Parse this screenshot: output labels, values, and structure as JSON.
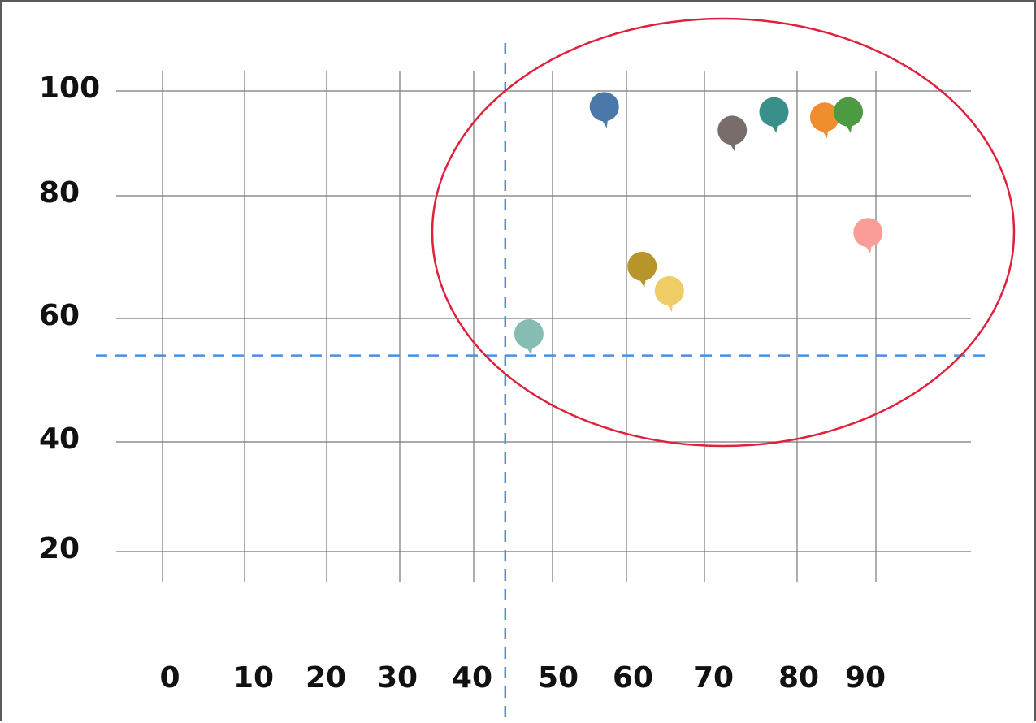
{
  "chart_data": {
    "type": "scatter",
    "title": "",
    "xlabel": "",
    "ylabel": "",
    "x_ticks": [
      "0",
      "10",
      "20",
      "30",
      "40",
      "50",
      "60",
      "70",
      "80",
      "90"
    ],
    "y_ticks": [
      "100",
      "80",
      "60",
      "40",
      "20"
    ],
    "xlim": [
      0,
      100
    ],
    "ylim": [
      20,
      100
    ],
    "grid": true,
    "points": [
      {
        "x": 47,
        "y": 57.5,
        "color": "#86bcb2"
      },
      {
        "x": 57,
        "y": 97,
        "color": "#4a78a8"
      },
      {
        "x": 62,
        "y": 68.5,
        "color": "#b8952a"
      },
      {
        "x": 65.5,
        "y": 64.5,
        "color": "#f0cc66"
      },
      {
        "x": 73,
        "y": 92.5,
        "color": "#786d6a"
      },
      {
        "x": 77.5,
        "y": 96,
        "color": "#3a8f8a"
      },
      {
        "x": 83.5,
        "y": 95,
        "color": "#f08d2f"
      },
      {
        "x": 86.5,
        "y": 96,
        "color": "#4d9a42"
      },
      {
        "x": 89,
        "y": 74,
        "color": "#fa9d99"
      }
    ],
    "reference_lines": {
      "x": 44,
      "y": 54,
      "color": "#4a90e2",
      "style": "dashed"
    },
    "highlight_ellipse": {
      "color": "#e0203c"
    }
  }
}
